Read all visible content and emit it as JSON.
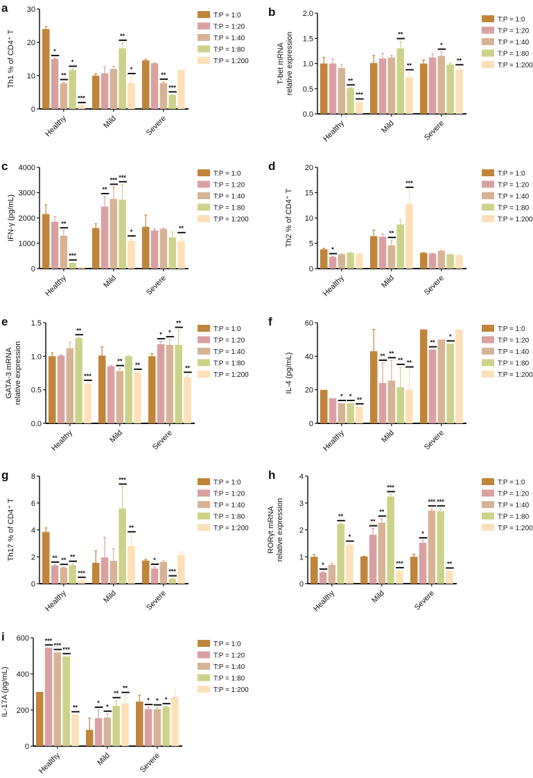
{
  "chart_data": [
    {
      "panel": "a",
      "type": "bar",
      "ylabel": [
        "Th1 % of CD4⁺ T"
      ],
      "ylim": [
        0,
        30
      ],
      "yticks": [
        "0",
        "10",
        "20",
        "30"
      ],
      "tickvals": [
        0,
        10,
        20,
        30
      ],
      "categories": [
        "Healthy",
        "Mild",
        "Severe"
      ],
      "series": [
        {
          "name": "T:P = 1:0",
          "color": "#C0843A"
        },
        {
          "name": "T:P = 1:20",
          "color": "#D9A0A2"
        },
        {
          "name": "T:P = 1:40",
          "color": "#D7B396"
        },
        {
          "name": "T:P = 1:80",
          "color": "#CDD28A"
        },
        {
          "name": "T:P = 1:200",
          "color": "#FDE0B8"
        }
      ],
      "values": [
        [
          24,
          15,
          7.7,
          11.7,
          1
        ],
        [
          10,
          10.7,
          12,
          18.2,
          7.8
        ],
        [
          14.6,
          13.7,
          7.8,
          4.2,
          11.7
        ]
      ],
      "errors": [
        [
          0.7,
          0.2,
          0.3,
          0.3,
          0.1
        ],
        [
          0.6,
          2,
          0.8,
          1.6,
          2
        ],
        [
          0.3,
          0.1,
          0.3,
          0.1,
          0
        ]
      ],
      "significance": [
        [
          "",
          "*",
          "**",
          "*",
          "***"
        ],
        [
          "",
          "",
          "",
          "**",
          "*"
        ],
        [
          "",
          "",
          "**",
          "***",
          ""
        ]
      ]
    },
    {
      "panel": "b",
      "type": "bar",
      "ylabel": [
        "T-bet mRNA",
        "relative expression"
      ],
      "ylim": [
        0,
        2
      ],
      "yticks": [
        "0.0",
        "0.5",
        "1.0",
        "1.5",
        "2.0"
      ],
      "tickvals": [
        0,
        0.5,
        1,
        1.5,
        2
      ],
      "categories": [
        "Healthy",
        "Mild",
        "Severe"
      ],
      "series": [
        {
          "name": "T:P = 1:0",
          "color": "#C0843A"
        },
        {
          "name": "T:P = 1:20",
          "color": "#D9A0A2"
        },
        {
          "name": "T:P = 1:40",
          "color": "#D7B396"
        },
        {
          "name": "T:P = 1:80",
          "color": "#CDD28A"
        },
        {
          "name": "T:P = 1:200",
          "color": "#FDE0B8"
        }
      ],
      "values": [
        [
          1.0,
          1.0,
          0.91,
          0.51,
          0.23
        ],
        [
          1.01,
          1.1,
          1.12,
          1.3,
          0.73
        ],
        [
          1.0,
          1.12,
          1.15,
          0.98,
          0.88
        ]
      ],
      "errors": [
        [
          0.12,
          0.09,
          0.07,
          0.01,
          0.01
        ],
        [
          0.15,
          0.1,
          0.04,
          0.14,
          0.09
        ],
        [
          0.07,
          0.07,
          0.08,
          0.03,
          0.04
        ]
      ],
      "significance": [
        [
          "",
          "",
          "",
          "**",
          "***"
        ],
        [
          "",
          "",
          "",
          "**",
          "**"
        ],
        [
          "",
          "",
          "*",
          "",
          "**"
        ]
      ]
    },
    {
      "panel": "c",
      "type": "bar",
      "ylabel": [
        "IFN-γ (pg/mL)"
      ],
      "ylim": [
        0,
        4000
      ],
      "yticks": [
        "0",
        "1000",
        "2000",
        "3000",
        "4000"
      ],
      "tickvals": [
        0,
        1000,
        2000,
        3000,
        4000
      ],
      "categories": [
        "Healthy",
        "Mild",
        "Severe"
      ],
      "series": [
        {
          "name": "T:P = 1:0",
          "color": "#C0843A"
        },
        {
          "name": "T:P = 1:20",
          "color": "#D9A0A2"
        },
        {
          "name": "T:P = 1:40",
          "color": "#D7B396"
        },
        {
          "name": "T:P = 1:80",
          "color": "#CDD28A"
        },
        {
          "name": "T:P = 1:200",
          "color": "#FDE0B8"
        }
      ],
      "values": [
        [
          2150,
          1850,
          1300,
          220,
          60
        ],
        [
          1600,
          2450,
          2750,
          2720,
          1100
        ],
        [
          1650,
          1500,
          1570,
          1230,
          1080
        ]
      ],
      "errors": [
        [
          370,
          200,
          200,
          10,
          5
        ],
        [
          170,
          400,
          470,
          600,
          80
        ],
        [
          460,
          60,
          30,
          220,
          230
        ]
      ],
      "significance": [
        [
          "",
          "",
          "**",
          "***",
          ""
        ],
        [
          "",
          "**",
          "***",
          "***",
          "*"
        ],
        [
          "",
          "",
          "",
          "",
          "**"
        ]
      ]
    },
    {
      "panel": "d",
      "type": "bar",
      "ylabel": [
        "Th2 % of CD4⁺ T"
      ],
      "ylim": [
        0,
        20
      ],
      "yticks": [
        "0",
        "5",
        "10",
        "15",
        "20"
      ],
      "tickvals": [
        0,
        5,
        10,
        15,
        20
      ],
      "categories": [
        "Healthy",
        "Mild",
        "Severe"
      ],
      "series": [
        {
          "name": "T:P = 1:0",
          "color": "#C0843A"
        },
        {
          "name": "T:P = 1:20",
          "color": "#D9A0A2"
        },
        {
          "name": "T:P = 1:40",
          "color": "#D7B396"
        },
        {
          "name": "T:P = 1:80",
          "color": "#CDD28A"
        },
        {
          "name": "T:P = 1:200",
          "color": "#FDE0B8"
        }
      ],
      "values": [
        [
          3.8,
          2.3,
          2.8,
          3.1,
          2.9
        ],
        [
          6.4,
          6.3,
          4.6,
          8.7,
          12.7
        ],
        [
          3.1,
          3.0,
          3.5,
          2.8,
          2.6
        ]
      ],
      "errors": [
        [
          0.2,
          0.1,
          0.1,
          0.1,
          0.1
        ],
        [
          1.2,
          0.5,
          1.0,
          0.9,
          2.8
        ],
        [
          0.05,
          0.05,
          0.1,
          0.05,
          0.1
        ]
      ],
      "significance": [
        [
          "",
          "*",
          "",
          "",
          ""
        ],
        [
          "",
          "",
          "**",
          "",
          "***"
        ],
        [
          "",
          "",
          "",
          "",
          ""
        ]
      ]
    },
    {
      "panel": "e",
      "type": "bar",
      "ylabel": [
        "GATA-3 mRNA",
        "relative expression"
      ],
      "ylim": [
        0,
        1.5
      ],
      "yticks": [
        "0.0",
        "0.5",
        "1.0",
        "1.5"
      ],
      "tickvals": [
        0,
        0.5,
        1,
        1.5
      ],
      "categories": [
        "Healthy",
        "Mild",
        "Severe"
      ],
      "series": [
        {
          "name": "T:P = 1:0",
          "color": "#C0843A"
        },
        {
          "name": "T:P = 1:20",
          "color": "#D9A0A2"
        },
        {
          "name": "T:P = 1:40",
          "color": "#D7B396"
        },
        {
          "name": "T:P = 1:80",
          "color": "#CDD28A"
        },
        {
          "name": "T:P = 1:200",
          "color": "#FDE0B8"
        }
      ],
      "values": [
        [
          1.0,
          1.01,
          1.12,
          1.27,
          0.59
        ],
        [
          1.01,
          0.85,
          0.78,
          1.0,
          0.76
        ],
        [
          1.0,
          1.18,
          1.17,
          1.17,
          0.69
        ]
      ],
      "errors": [
        [
          0.05,
          0.01,
          0.09,
          0.01,
          0.01
        ],
        [
          0.13,
          0.01,
          0.04,
          0.005,
          0.005
        ],
        [
          0.04,
          0.04,
          0.08,
          0.22,
          0.03
        ]
      ],
      "significance": [
        [
          "",
          "",
          "",
          "**",
          "***"
        ],
        [
          "",
          "",
          "**",
          "",
          "**"
        ],
        [
          "",
          "*",
          "*",
          "**",
          "**"
        ]
      ]
    },
    {
      "panel": "f",
      "type": "bar",
      "ylabel": [
        "IL-4 (pg/mL)"
      ],
      "ylim": [
        0,
        60
      ],
      "yticks": [
        "0",
        "20",
        "40",
        "60"
      ],
      "tickvals": [
        0,
        20,
        40,
        60
      ],
      "categories": [
        "Healthy",
        "Mild",
        "Severe"
      ],
      "series": [
        {
          "name": "T:P = 1:0",
          "color": "#C0843A"
        },
        {
          "name": "T:P = 1:20",
          "color": "#D9A0A2"
        },
        {
          "name": "T:P = 1:40",
          "color": "#D7B396"
        },
        {
          "name": "T:P = 1:80",
          "color": "#CDD28A"
        },
        {
          "name": "T:P = 1:200",
          "color": "#FDE0B8"
        }
      ],
      "values": [
        [
          20,
          15,
          12,
          12,
          10
        ],
        [
          43,
          24,
          25.5,
          21.5,
          20
        ],
        [
          56,
          44,
          50,
          47.5,
          56
        ]
      ],
      "errors": [
        [
          0,
          0,
          0,
          0,
          0
        ],
        [
          13,
          12,
          12,
          12,
          12
        ],
        [
          0,
          0,
          0,
          0,
          0
        ]
      ],
      "significance": [
        [
          "",
          "",
          "*",
          "*",
          "**"
        ],
        [
          "",
          "**",
          "**",
          "**",
          "**"
        ],
        [
          "",
          "**",
          "",
          "*",
          ""
        ]
      ]
    },
    {
      "panel": "g",
      "type": "bar",
      "ylabel": [
        "Th17 % of CD4⁺ T"
      ],
      "ylim": [
        0,
        8
      ],
      "yticks": [
        "0",
        "2",
        "4",
        "6",
        "8"
      ],
      "tickvals": [
        0,
        2,
        4,
        6,
        8
      ],
      "categories": [
        "Healthy",
        "Mild",
        "Severe"
      ],
      "series": [
        {
          "name": "T:P = 1:0",
          "color": "#C0843A"
        },
        {
          "name": "T:P = 1:20",
          "color": "#D9A0A2"
        },
        {
          "name": "T:P = 1:40",
          "color": "#D7B396"
        },
        {
          "name": "T:P = 1:80",
          "color": "#CDD28A"
        },
        {
          "name": "T:P = 1:200",
          "color": "#FDE0B8"
        }
      ],
      "values": [
        [
          3.85,
          1.35,
          1.2,
          1.38,
          0.25
        ],
        [
          1.55,
          1.95,
          1.7,
          5.6,
          2.8
        ],
        [
          1.72,
          1.12,
          1.62,
          0.35,
          2.12
        ]
      ],
      "errors": [
        [
          0.3,
          0.05,
          0.03,
          0.08,
          0.02
        ],
        [
          0.9,
          1.5,
          0.9,
          1.6,
          0.85
        ],
        [
          0.08,
          0.12,
          0.07,
          0.03,
          0.25
        ]
      ],
      "significance": [
        [
          "",
          "**",
          "**",
          "**",
          "***"
        ],
        [
          "",
          "",
          "",
          "***",
          "**"
        ],
        [
          "",
          "*",
          "",
          "***",
          ""
        ]
      ]
    },
    {
      "panel": "h",
      "type": "bar",
      "ylabel": [
        "RORγt mRNA",
        "relative expression"
      ],
      "ylim": [
        0,
        4
      ],
      "yticks": [
        "0",
        "1",
        "2",
        "3",
        "4"
      ],
      "tickvals": [
        0,
        1,
        2,
        3,
        4
      ],
      "categories": [
        "Healthy",
        "Mild",
        "Severe"
      ],
      "series": [
        {
          "name": "T:P = 1:0",
          "color": "#C0843A"
        },
        {
          "name": "T:P = 1:20",
          "color": "#D9A0A2"
        },
        {
          "name": "T:P = 1:40",
          "color": "#D7B396"
        },
        {
          "name": "T:P = 1:80",
          "color": "#CDD28A"
        },
        {
          "name": "T:P = 1:200",
          "color": "#FDE0B8"
        }
      ],
      "values": [
        [
          1.0,
          0.42,
          0.7,
          2.22,
          1.45
        ],
        [
          1.01,
          1.82,
          2.27,
          3.24,
          0.47
        ],
        [
          1.0,
          1.52,
          2.72,
          2.69,
          0.47
        ]
      ],
      "errors": [
        [
          0.08,
          0.02,
          0.06,
          0.02,
          0.03
        ],
        [
          0.01,
          0.23,
          0.14,
          0.08,
          0.02
        ],
        [
          0.1,
          0.08,
          0.07,
          0.1,
          0.01
        ]
      ],
      "significance": [
        [
          "",
          "*",
          "",
          "**",
          "*"
        ],
        [
          "",
          "**",
          "**",
          "***",
          "***"
        ],
        [
          "",
          "*",
          "***",
          "***",
          "**"
        ]
      ]
    },
    {
      "panel": "i",
      "type": "bar",
      "ylabel": [
        "IL-17A (pg/mL)"
      ],
      "ylim": [
        0,
        600
      ],
      "yticks": [
        "0",
        "200",
        "400",
        "600"
      ],
      "tickvals": [
        0,
        200,
        400,
        600
      ],
      "categories": [
        "Healthy",
        "Mild",
        "Severe"
      ],
      "series": [
        {
          "name": "T:P = 1:0",
          "color": "#C0843A"
        },
        {
          "name": "T:P = 1:20",
          "color": "#D9A0A2"
        },
        {
          "name": "T:P = 1:40",
          "color": "#D7B396"
        },
        {
          "name": "T:P = 1:80",
          "color": "#CDD28A"
        },
        {
          "name": "T:P = 1:200",
          "color": "#FDE0B8"
        }
      ],
      "values": [
        [
          300,
          545,
          520,
          497,
          175
        ],
        [
          90,
          155,
          158,
          223,
          237
        ],
        [
          247,
          205,
          205,
          217,
          273
        ]
      ],
      "errors": [
        [
          0,
          0,
          0,
          0,
          0
        ],
        [
          65,
          45,
          20,
          30,
          45
        ],
        [
          35,
          10,
          8,
          3,
          42
        ]
      ],
      "significance": [
        [
          "",
          "***",
          "***",
          "***",
          "**"
        ],
        [
          "",
          "*",
          "*",
          "**",
          "**"
        ],
        [
          "",
          "*",
          "*",
          "*",
          ""
        ]
      ]
    }
  ]
}
